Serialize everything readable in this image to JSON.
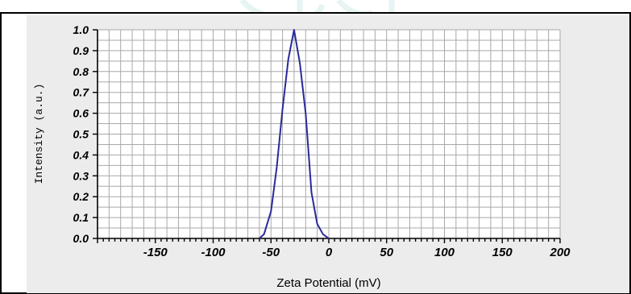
{
  "colors": {
    "panel_background": "#ececec",
    "plot_background": "#ffffff",
    "frame": "#000000",
    "grid": "#a8a8a8",
    "series_line": "#2a2a9a",
    "watermark": "#d3ecea"
  },
  "chart_data": {
    "type": "line",
    "title": "",
    "xlabel": "Zeta Potential (mV)",
    "ylabel": "Intensity (a.u.)",
    "xlim": [
      -200,
      200
    ],
    "ylim": [
      0,
      1.0
    ],
    "x_ticks": [
      -150,
      -100,
      -50,
      0,
      50,
      100,
      150,
      200
    ],
    "x_tick_labels": [
      "-150",
      "-100",
      "-50",
      "0",
      "50",
      "100",
      "150",
      "200"
    ],
    "y_ticks": [
      0.0,
      0.1,
      0.2,
      0.3,
      0.4,
      0.5,
      0.6,
      0.7,
      0.8,
      0.9,
      1.0
    ],
    "y_tick_labels": [
      "0.0",
      "0.1",
      "0.2",
      "0.3",
      "0.4",
      "0.5",
      "0.6",
      "0.7",
      "0.8",
      "0.9",
      "1.0"
    ],
    "grid": true,
    "legend": "none",
    "series": [
      {
        "x": [
          -60,
          -56,
          -50,
          -45,
          -40,
          -35,
          -30,
          -25,
          -20,
          -15,
          -10,
          -5,
          0
        ],
        "y": [
          0.0,
          0.02,
          0.13,
          0.34,
          0.62,
          0.86,
          1.0,
          0.84,
          0.6,
          0.22,
          0.07,
          0.02,
          0.0
        ]
      }
    ]
  }
}
